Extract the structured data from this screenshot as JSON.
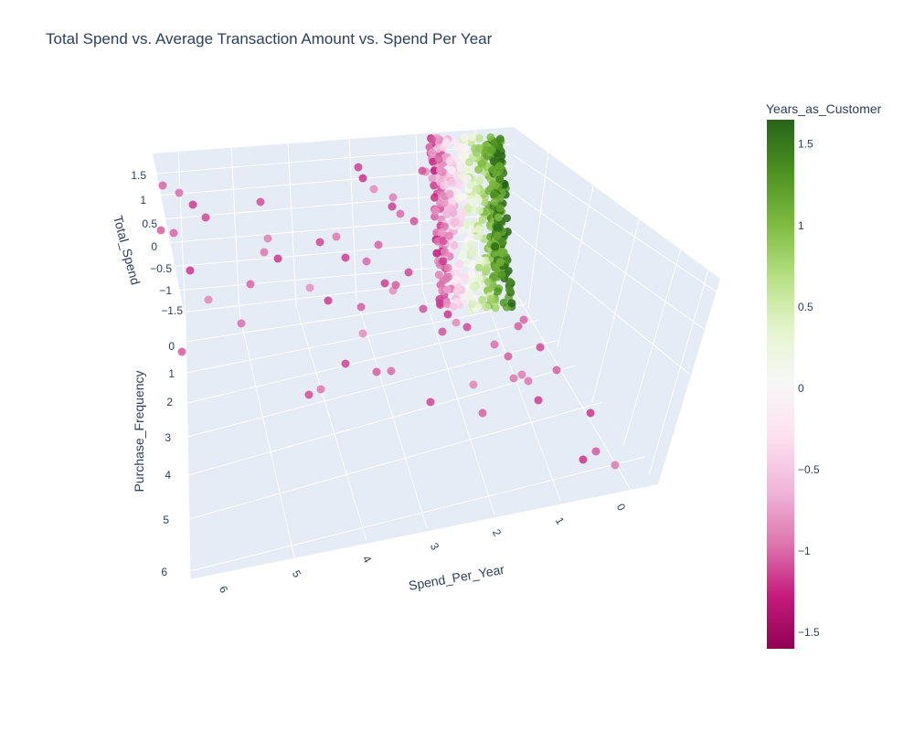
{
  "chart_data": {
    "type": "scatter3d",
    "title": "Total Spend vs. Average Transaction Amount vs. Spend Per Year",
    "axes": {
      "x": {
        "label": "Spend_Per_Year",
        "ticks": [
          "0",
          "1",
          "2",
          "3",
          "4",
          "5",
          "6"
        ]
      },
      "y": {
        "label": "Purchase_Frequency",
        "ticks": [
          "0",
          "1",
          "2",
          "3",
          "4",
          "5",
          "6"
        ]
      },
      "z": {
        "label": "Total_Spend",
        "ticks": [
          "−1.5",
          "−1",
          "−0.5",
          "0",
          "0.5",
          "1",
          "1.5"
        ]
      }
    },
    "colorbar": {
      "title": "Years_as_Customer",
      "colorscale": "PiYG",
      "range": [
        -1.6,
        1.65
      ],
      "ticks": [
        "−1.5",
        "−1",
        "−0.5",
        "0",
        "0.5",
        "1",
        "1.5"
      ]
    },
    "grid": true,
    "points_note": "Cluster of many points near Spend_Per_Year≈1.5-2 across all Purchase_Frequency values; sparse outliers spread toward Spend_Per_Year 0-6."
  }
}
